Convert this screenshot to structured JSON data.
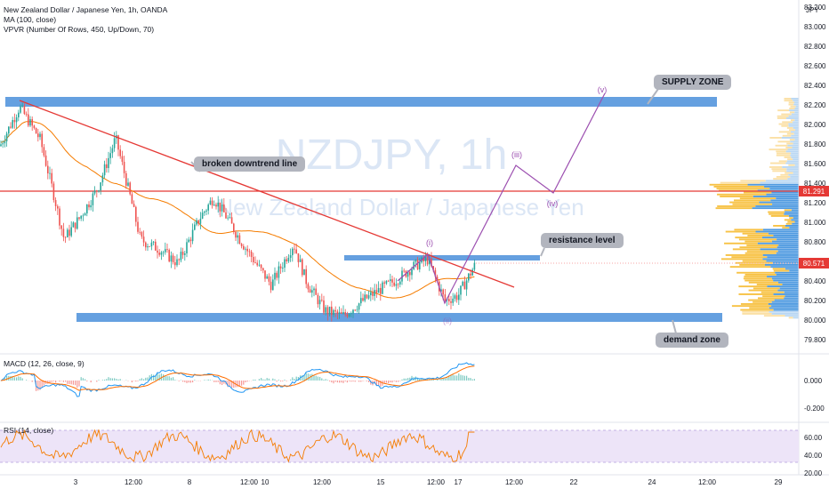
{
  "header": {
    "symbol_line": "New Zealand Dollar / Japanese Yen, 1h, OANDA",
    "ma_line": "MA (100, close)",
    "vpvr_line": "VPVR (Number Of Rows, 450, Up/Down, 70)",
    "currency": "JPY"
  },
  "watermark": {
    "ticker": "NZDJPY, 1h",
    "name": "New Zealand Dollar / Japanese Yen"
  },
  "annotations": {
    "supply_zone": "SUPPLY ZONE",
    "downtrend": "broken downtrend line",
    "resistance": "resistance level",
    "demand_zone": "demand zone",
    "wave_i": "(i)",
    "wave_ii": "(ii)",
    "wave_iii": "(iii)",
    "wave_iv": "(iv)",
    "wave_v": "(v)"
  },
  "price_badges": {
    "red_level": "81.291",
    "last_price": "80.571"
  },
  "chart_data": [
    {
      "type": "candlestick",
      "title": "New Zealand Dollar / Japanese Yen, 1h, OANDA",
      "y_ticks": [
        "79.800",
        "80.000",
        "80.200",
        "80.400",
        "80.600",
        "80.800",
        "81.000",
        "81.200",
        "81.400",
        "81.600",
        "81.800",
        "82.000",
        "82.200",
        "82.400",
        "82.600",
        "82.800",
        "83.000",
        "83.200"
      ],
      "ylim": [
        79.75,
        83.25
      ],
      "x_ticks": [
        "3",
        "12:00",
        "8",
        "12:00",
        "10",
        "12:00",
        "15",
        "12:00",
        "17",
        "12:00",
        "22",
        "24",
        "12:00",
        "29"
      ],
      "levels": {
        "resistance": 80.62,
        "red_horizontal": 81.291,
        "last": 80.571
      },
      "zones": {
        "supply": [
          82.16,
          82.26
        ],
        "demand": [
          79.99,
          80.08
        ]
      },
      "wave_targets": {
        "iii": 81.56,
        "iv": 81.28,
        "v": 82.22
      },
      "ma_100": true,
      "volume_profile": true
    },
    {
      "type": "line",
      "title": "MACD (12, 26, close, 9)",
      "y_ticks": [
        "0.000",
        "-0.200"
      ],
      "ylim": [
        -0.3,
        0.2
      ]
    },
    {
      "type": "line",
      "title": "RSI (14, close)",
      "y_ticks": [
        "60.00",
        "40.00",
        "20.00"
      ],
      "ylim": [
        15,
        80
      ],
      "band": [
        30,
        70
      ]
    }
  ]
}
